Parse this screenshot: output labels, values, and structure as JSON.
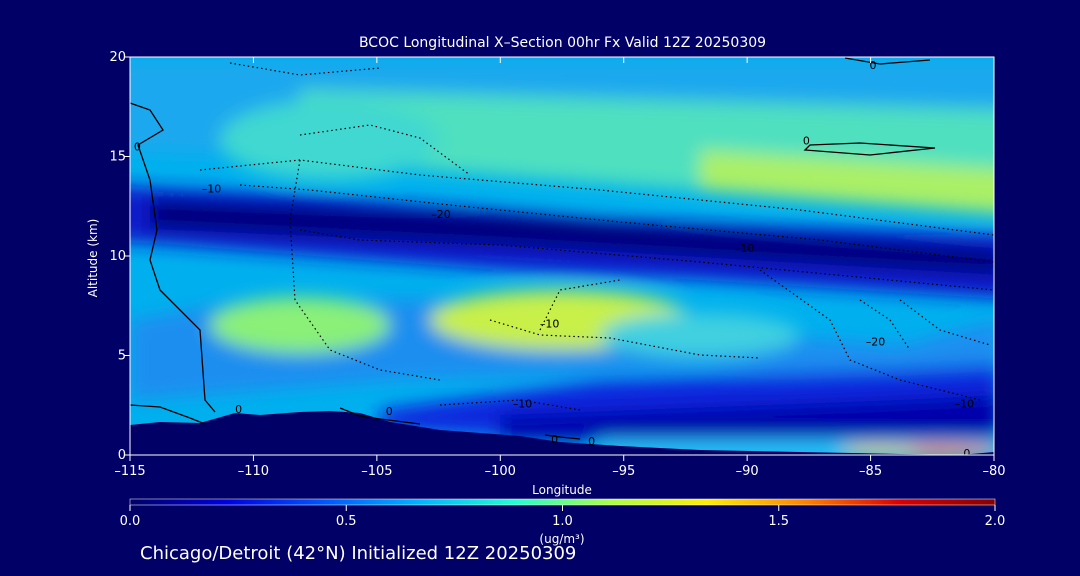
{
  "chart_data": {
    "type": "heatmap",
    "title": "BCOC Longitudinal X–Section 00hr  Fx Valid 12Z 20250309",
    "xlabel": "Longitude",
    "ylabel": "Altitude (km)",
    "xlim": [
      -115,
      -80
    ],
    "ylim": [
      0,
      20
    ],
    "x_ticks": [
      -115,
      -110,
      -105,
      -100,
      -95,
      -90,
      -85,
      -80
    ],
    "x_tick_labels": [
      "–115",
      "–110",
      "–105",
      "–100",
      "–95",
      "–90",
      "–85",
      "–80"
    ],
    "y_ticks": [
      0,
      5,
      10,
      15,
      20
    ],
    "y_tick_labels": [
      "0",
      "5",
      "10",
      "15",
      "20"
    ],
    "colorbar": {
      "min": 0.0,
      "max": 2.0,
      "ticks": [
        0.0,
        0.5,
        1.0,
        1.5,
        2.0
      ],
      "tick_labels": [
        "0.0",
        "0.5",
        "1.0",
        "1.5",
        "2.0"
      ],
      "unit_label": "(ug/m³)",
      "colors": [
        "#000066",
        "#0000dd",
        "#0055ff",
        "#00b4ff",
        "#22ffd0",
        "#aaff44",
        "#ffee00",
        "#ff8800",
        "#dd0000",
        "#880000"
      ]
    },
    "contour_labels": [
      {
        "text": "0",
        "lon": -114.7,
        "alt": 15.5
      },
      {
        "text": "–10",
        "lon": -111.7,
        "alt": 13.4
      },
      {
        "text": "–20",
        "lon": -102.4,
        "alt": 12.1
      },
      {
        "text": "–10",
        "lon": -98.0,
        "alt": 6.6
      },
      {
        "text": "–10",
        "lon": -90.1,
        "alt": 10.4
      },
      {
        "text": "–20",
        "lon": -84.8,
        "alt": 5.7
      },
      {
        "text": "0",
        "lon": -87.6,
        "alt": 15.8
      },
      {
        "text": "0",
        "lon": -84.9,
        "alt": 19.6
      },
      {
        "text": "0",
        "lon": -110.6,
        "alt": 2.3
      },
      {
        "text": "0",
        "lon": -104.5,
        "alt": 2.2
      },
      {
        "text": "–10",
        "lon": -99.1,
        "alt": 2.6
      },
      {
        "text": "0",
        "lon": -97.8,
        "alt": 0.8
      },
      {
        "text": "0",
        "lon": -96.3,
        "alt": 0.7
      },
      {
        "text": "–10",
        "lon": -81.2,
        "alt": 2.6
      },
      {
        "text": "0",
        "lon": -81.1,
        "alt": 0.1
      }
    ]
  },
  "footer": "Chicago/Detroit (42°N) Initialized 12Z 20250309"
}
